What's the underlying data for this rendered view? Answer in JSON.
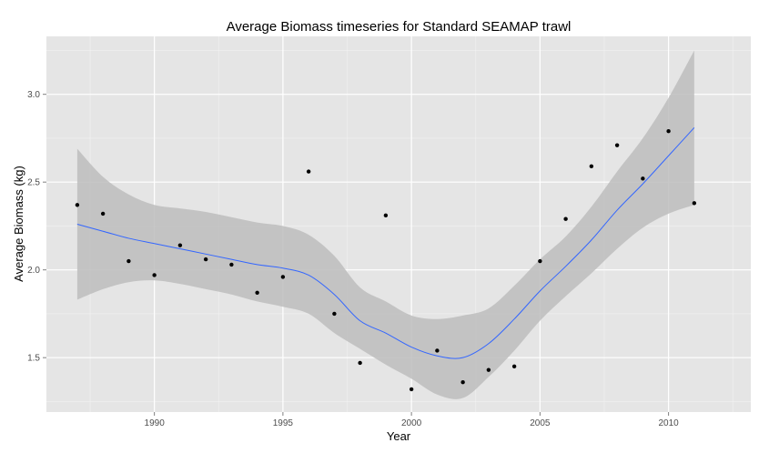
{
  "chart_data": {
    "type": "scatter",
    "title": "Average Biomass timeseries for Standard SEAMAP trawl",
    "xlabel": "Year",
    "ylabel": "Average Biomass (kg)",
    "xlim": [
      1985.8,
      2013.2
    ],
    "ylim": [
      1.19,
      3.33
    ],
    "x_ticks": [
      1990,
      1995,
      2000,
      2005,
      2010
    ],
    "y_ticks": [
      1.5,
      2.0,
      2.5,
      3.0
    ],
    "x_tick_labels": [
      "1990",
      "1995",
      "2000",
      "2005",
      "2010"
    ],
    "y_tick_labels": [
      "1.5",
      "2.0",
      "2.5",
      "3.0"
    ],
    "grid": true,
    "series": [
      {
        "kind": "points",
        "x": [
          1987,
          1988,
          1989,
          1990,
          1991,
          1992,
          1993,
          1994,
          1995,
          1996,
          1997,
          1998,
          1999,
          2000,
          2001,
          2002,
          2003,
          2004,
          2005,
          2006,
          2007,
          2008,
          2009,
          2010,
          2011
        ],
        "y": [
          2.37,
          2.32,
          2.05,
          1.97,
          2.14,
          2.06,
          2.03,
          1.87,
          1.96,
          2.56,
          1.75,
          1.47,
          2.31,
          1.32,
          1.54,
          1.36,
          1.43,
          1.45,
          2.05,
          2.29,
          2.59,
          2.71,
          2.52,
          2.79,
          2.38
        ],
        "color": "#000000"
      },
      {
        "kind": "smooth",
        "x": [
          1987,
          1988,
          1989,
          1990,
          1991,
          1992,
          1993,
          1994,
          1995,
          1996,
          1997,
          1998,
          1999,
          2000,
          2001,
          2002,
          2003,
          2004,
          2005,
          2006,
          2007,
          2008,
          2009,
          2010,
          2011
        ],
        "y": [
          2.26,
          2.22,
          2.18,
          2.15,
          2.12,
          2.09,
          2.06,
          2.03,
          2.01,
          1.97,
          1.86,
          1.71,
          1.64,
          1.56,
          1.51,
          1.5,
          1.58,
          1.72,
          1.88,
          2.02,
          2.17,
          2.34,
          2.49,
          2.65,
          2.81
        ],
        "lower": [
          1.83,
          1.89,
          1.93,
          1.94,
          1.92,
          1.89,
          1.86,
          1.82,
          1.79,
          1.75,
          1.64,
          1.55,
          1.46,
          1.38,
          1.29,
          1.27,
          1.39,
          1.54,
          1.71,
          1.85,
          1.98,
          2.12,
          2.24,
          2.32,
          2.37
        ],
        "upper": [
          2.69,
          2.53,
          2.43,
          2.37,
          2.35,
          2.33,
          2.3,
          2.27,
          2.25,
          2.2,
          2.08,
          1.9,
          1.82,
          1.74,
          1.72,
          1.74,
          1.78,
          1.91,
          2.06,
          2.19,
          2.36,
          2.56,
          2.75,
          2.98,
          3.25
        ],
        "line_color": "#3366ff",
        "band_color": "#bdbdbd"
      }
    ],
    "colors": {
      "panel_background": "#e5e5e5",
      "grid_major": "#ffffff",
      "grid_minor": "#f2f2f2"
    }
  }
}
